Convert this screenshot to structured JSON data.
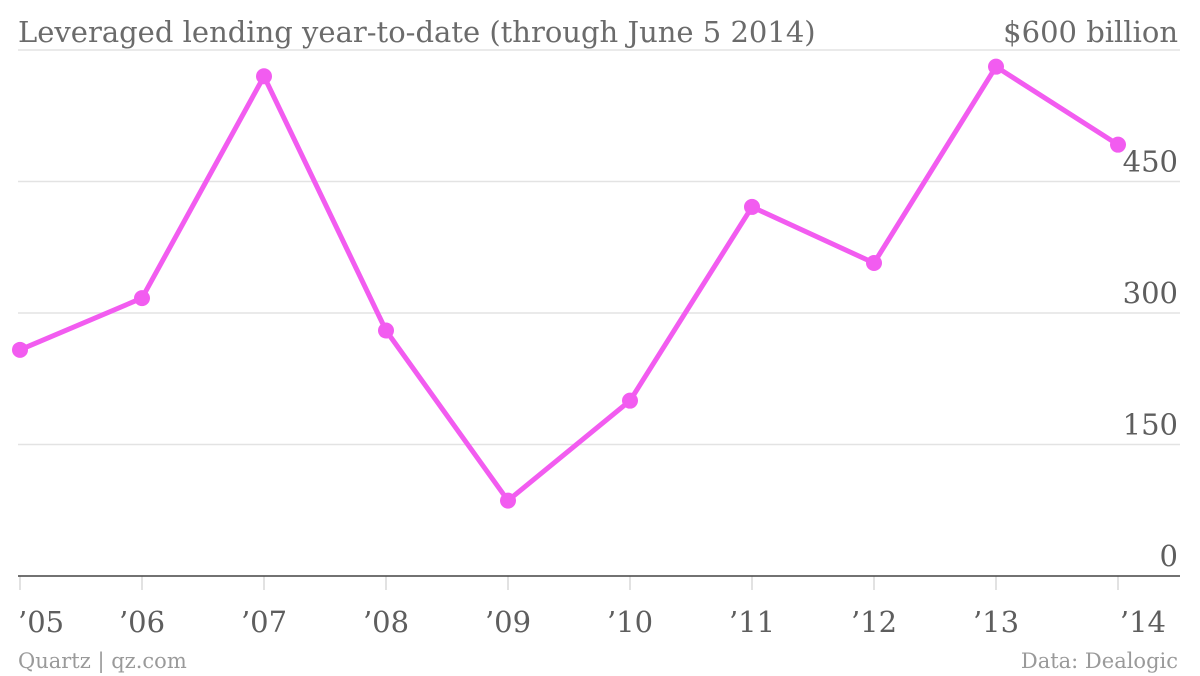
{
  "chart_data": {
    "type": "line",
    "title": "Leveraged lending year-to-date (through June 5 2014)",
    "y_unit_label": "$600 billion",
    "categories": [
      "’05",
      "’06",
      "’07",
      "’08",
      "’09",
      "’10",
      "’11",
      "’12",
      "’13",
      "’14"
    ],
    "series": [
      {
        "values": [
          258,
          317,
          570,
          280,
          86,
          200,
          421,
          357,
          581,
          492
        ]
      }
    ],
    "y_ticks": [
      "0",
      "150",
      "300",
      "450",
      "$600 billion"
    ],
    "y_tick_values": [
      0,
      150,
      300,
      450,
      600
    ],
    "ylim": [
      0,
      600
    ],
    "grid": true,
    "y_axis_position": "right",
    "colors": {
      "line": "#f25cf0",
      "grid": "#e3e3e3",
      "baseline": "#444444",
      "text": "#5e5e5e",
      "footer": "#9a9a9a"
    }
  },
  "footer": {
    "source_left": "Quartz | qz.com",
    "source_right": "Data: Dealogic"
  }
}
